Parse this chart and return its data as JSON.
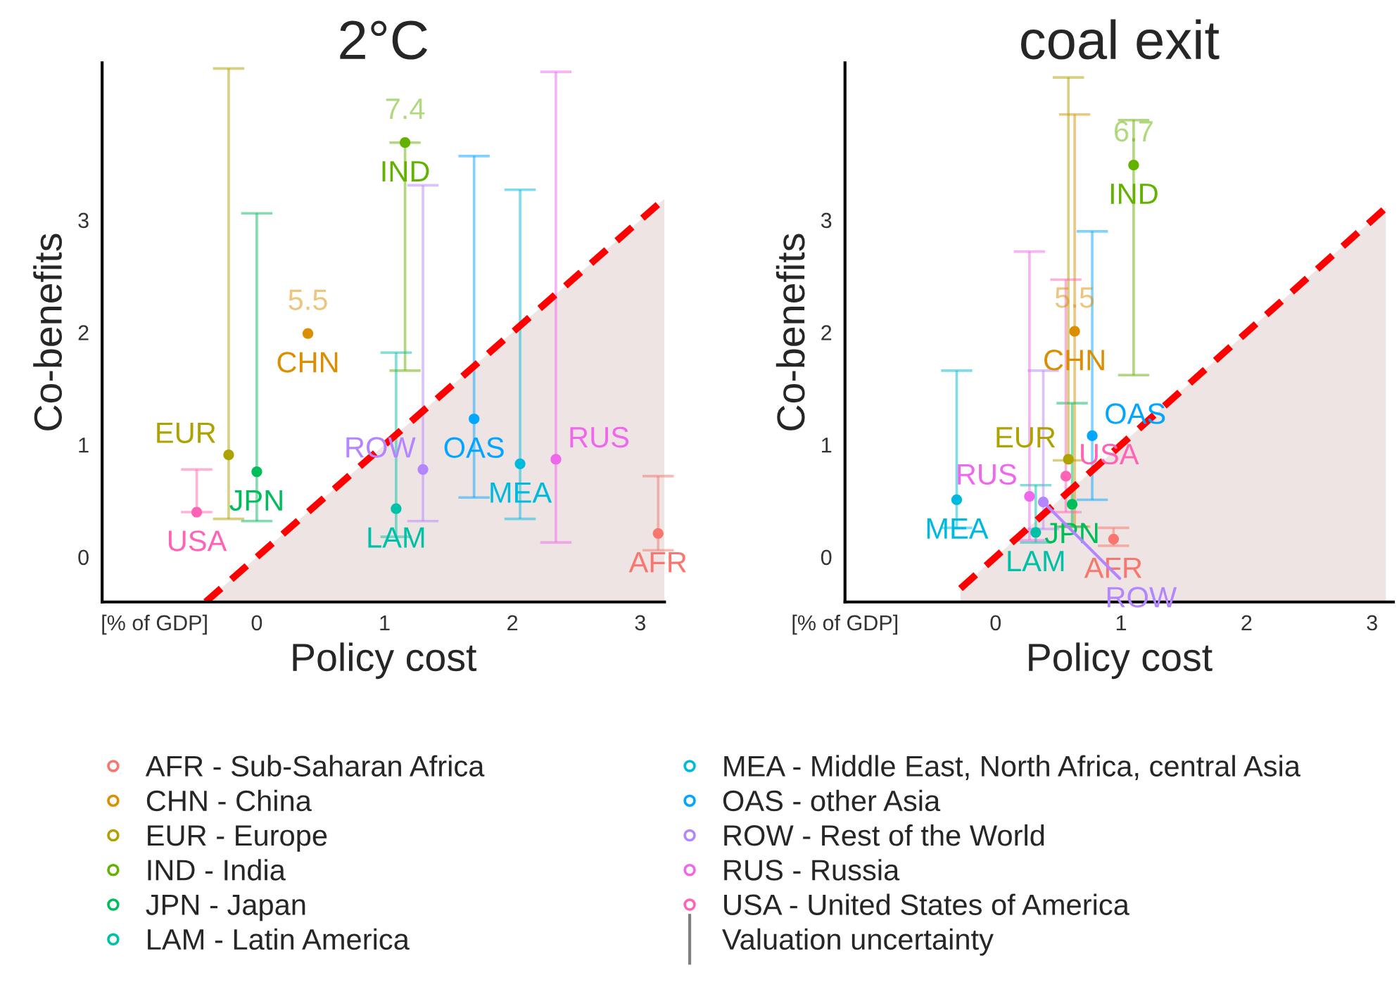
{
  "chart_data": [
    {
      "type": "scatter",
      "title": "2°C",
      "xlabel": "Policy cost",
      "ylabel": "Co-benefits",
      "marker": "circle",
      "legend": "bottom",
      "xlim": [
        -1.21,
        3.19
      ],
      "ylim": [
        -0.4,
        4.4
      ],
      "xticks": [
        {
          "value": -0.8,
          "label": "[% of GDP]"
        },
        0,
        1,
        2,
        3
      ],
      "yticks": [
        0,
        1,
        2,
        3
      ],
      "series": [
        {
          "name": "AFR - Sub-Saharan Africa",
          "color": "#f8766d",
          "x": [
            3.14
          ],
          "values": [
            0.21
          ],
          "errors": [
            [
              0.06,
              0.72
            ]
          ],
          "value_labels": [
            "AFR"
          ]
        },
        {
          "name": "CHN - China",
          "color": "#db8e00",
          "x": [
            0.4
          ],
          "values": [
            1.99
          ],
          "errors": [
            null
          ],
          "value_labels": [
            "CHN"
          ]
        },
        {
          "name": "EUR - Europe",
          "color": "#aea200",
          "x": [
            -0.22
          ],
          "values": [
            0.91
          ],
          "errors": [
            [
              0.34,
              4.35
            ]
          ],
          "value_labels": [
            "EUR"
          ]
        },
        {
          "name": "IND - India",
          "color": "#64b200",
          "x": [
            1.16
          ],
          "values": [
            3.69
          ],
          "errors": [
            [
              1.66,
              3.69
            ]
          ],
          "value_labels": [
            "IND"
          ]
        },
        {
          "name": "JPN - Japan",
          "color": "#00bd5c",
          "x": [
            0.0
          ],
          "values": [
            0.76
          ],
          "errors": [
            [
              0.32,
              3.06
            ]
          ],
          "value_labels": [
            "JPN"
          ]
        },
        {
          "name": "LAM - Latin America",
          "color": "#00c1a7",
          "x": [
            1.09
          ],
          "values": [
            0.43
          ],
          "errors": [
            [
              0.18,
              1.82
            ]
          ],
          "value_labels": [
            "LAM"
          ]
        },
        {
          "name": "MEA - Middle East, North Africa, central Asia",
          "color": "#00bade",
          "x": [
            2.06
          ],
          "values": [
            0.83
          ],
          "errors": [
            [
              0.34,
              3.27
            ]
          ],
          "value_labels": [
            "MEA"
          ]
        },
        {
          "name": "OAS - other Asia",
          "color": "#00a6ff",
          "x": [
            1.7
          ],
          "values": [
            1.23
          ],
          "errors": [
            [
              0.53,
              3.57
            ]
          ],
          "value_labels": [
            "OAS"
          ]
        },
        {
          "name": "ROW - Rest of the World",
          "color": "#b385ff",
          "x": [
            1.3
          ],
          "values": [
            0.78
          ],
          "errors": [
            [
              0.32,
              3.31
            ]
          ],
          "value_labels": [
            "ROW"
          ]
        },
        {
          "name": "RUS - Russia",
          "color": "#ef67eb",
          "x": [
            2.34
          ],
          "values": [
            0.87
          ],
          "errors": [
            [
              0.13,
              4.32
            ]
          ],
          "value_labels": [
            "RUS"
          ]
        },
        {
          "name": "USA - United States of America",
          "color": "#ff63b6",
          "x": [
            -0.47
          ],
          "values": [
            0.4
          ],
          "errors": [
            [
              0.4,
              0.78
            ]
          ],
          "value_labels": [
            "USA"
          ]
        },
        {
          "type": "line",
          "color": "#ff0000",
          "line_style": "dashed",
          "marker": "none",
          "x": [
            -0.4,
            3.19
          ],
          "values": [
            -0.4,
            3.19
          ]
        }
      ],
      "annotations": [
        {
          "text": "7.4",
          "x": 1.16,
          "y": 3.69
        },
        {
          "text": "5.5",
          "x": 0.4,
          "y": 1.99
        }
      ]
    },
    {
      "type": "scatter",
      "title": "coal exit",
      "xlabel": "Policy cost",
      "ylabel": "Co-benefits",
      "marker": "circle",
      "legend": "bottom",
      "xlim": [
        -1.2,
        3.17
      ],
      "ylim": [
        -0.4,
        4.4
      ],
      "xticks": [
        {
          "value": -1.2,
          "label": "[% of GDP]"
        },
        0,
        1,
        2,
        3
      ],
      "yticks": [
        0,
        1,
        2,
        3
      ],
      "series": [
        {
          "name": "AFR - Sub-Saharan Africa",
          "color": "#f8766d",
          "x": [
            0.94
          ],
          "values": [
            0.16
          ],
          "errors": [
            [
              0.1,
              0.26
            ]
          ],
          "value_labels": [
            "AFR"
          ]
        },
        {
          "name": "CHN - China",
          "color": "#db8e00",
          "x": [
            0.63
          ],
          "values": [
            2.01
          ],
          "errors": [
            [
              0.27,
              3.94
            ]
          ],
          "value_labels": [
            "CHN"
          ]
        },
        {
          "name": "EUR - Europe",
          "color": "#aea200",
          "x": [
            0.58
          ],
          "values": [
            0.87
          ],
          "errors": [
            [
              0.86,
              4.27
            ]
          ],
          "value_labels": [
            "EUR"
          ]
        },
        {
          "name": "IND - India",
          "color": "#64b200",
          "x": [
            1.1
          ],
          "values": [
            3.49
          ],
          "errors": [
            [
              1.62,
              3.89
            ]
          ],
          "value_labels": [
            "IND"
          ]
        },
        {
          "name": "JPN - Japan",
          "color": "#00bd5c",
          "x": [
            0.61
          ],
          "values": [
            0.47
          ],
          "errors": [
            [
              0.27,
              1.37
            ]
          ],
          "value_labels": [
            "JPN"
          ]
        },
        {
          "name": "LAM - Latin America",
          "color": "#00c1a7",
          "x": [
            0.32
          ],
          "values": [
            0.22
          ],
          "errors": [
            [
              0.13,
              0.64
            ]
          ],
          "value_labels": [
            "LAM"
          ]
        },
        {
          "name": "MEA - Middle East, North Africa, central Asia",
          "color": "#00bade",
          "x": [
            -0.31
          ],
          "values": [
            0.51
          ],
          "errors": [
            [
              0.26,
              1.66
            ]
          ],
          "value_labels": [
            "MEA"
          ]
        },
        {
          "name": "OAS - other Asia",
          "color": "#00a6ff",
          "x": [
            0.77
          ],
          "values": [
            1.08
          ],
          "errors": [
            [
              0.51,
              2.9
            ]
          ],
          "value_labels": [
            "OAS"
          ]
        },
        {
          "name": "ROW - Rest of the World",
          "color": "#b385ff",
          "x": [
            0.38
          ],
          "values": [
            0.49
          ],
          "errors": [
            [
              0.25,
              1.66
            ]
          ],
          "value_labels": [
            "ROW"
          ]
        },
        {
          "name": "RUS - Russia",
          "color": "#ef67eb",
          "x": [
            0.27
          ],
          "values": [
            0.54
          ],
          "errors": [
            [
              0.15,
              2.72
            ]
          ],
          "value_labels": [
            "RUS"
          ]
        },
        {
          "name": "USA - United States of America",
          "color": "#ff63b6",
          "x": [
            0.56
          ],
          "values": [
            0.72
          ],
          "errors": [
            [
              0.4,
              2.47
            ]
          ],
          "value_labels": [
            "USA"
          ]
        },
        {
          "type": "line",
          "color": "#ff0000",
          "line_style": "dashed",
          "marker": "none",
          "x": [
            -0.28,
            3.11
          ],
          "values": [
            -0.28,
            3.11
          ]
        }
      ],
      "annotations": [
        {
          "text": "5.5",
          "x": 0.63,
          "y": 2.01
        },
        {
          "text": "6.7",
          "x": 1.1,
          "y": 3.49
        },
        "Valuation uncertainty"
      ]
    }
  ]
}
